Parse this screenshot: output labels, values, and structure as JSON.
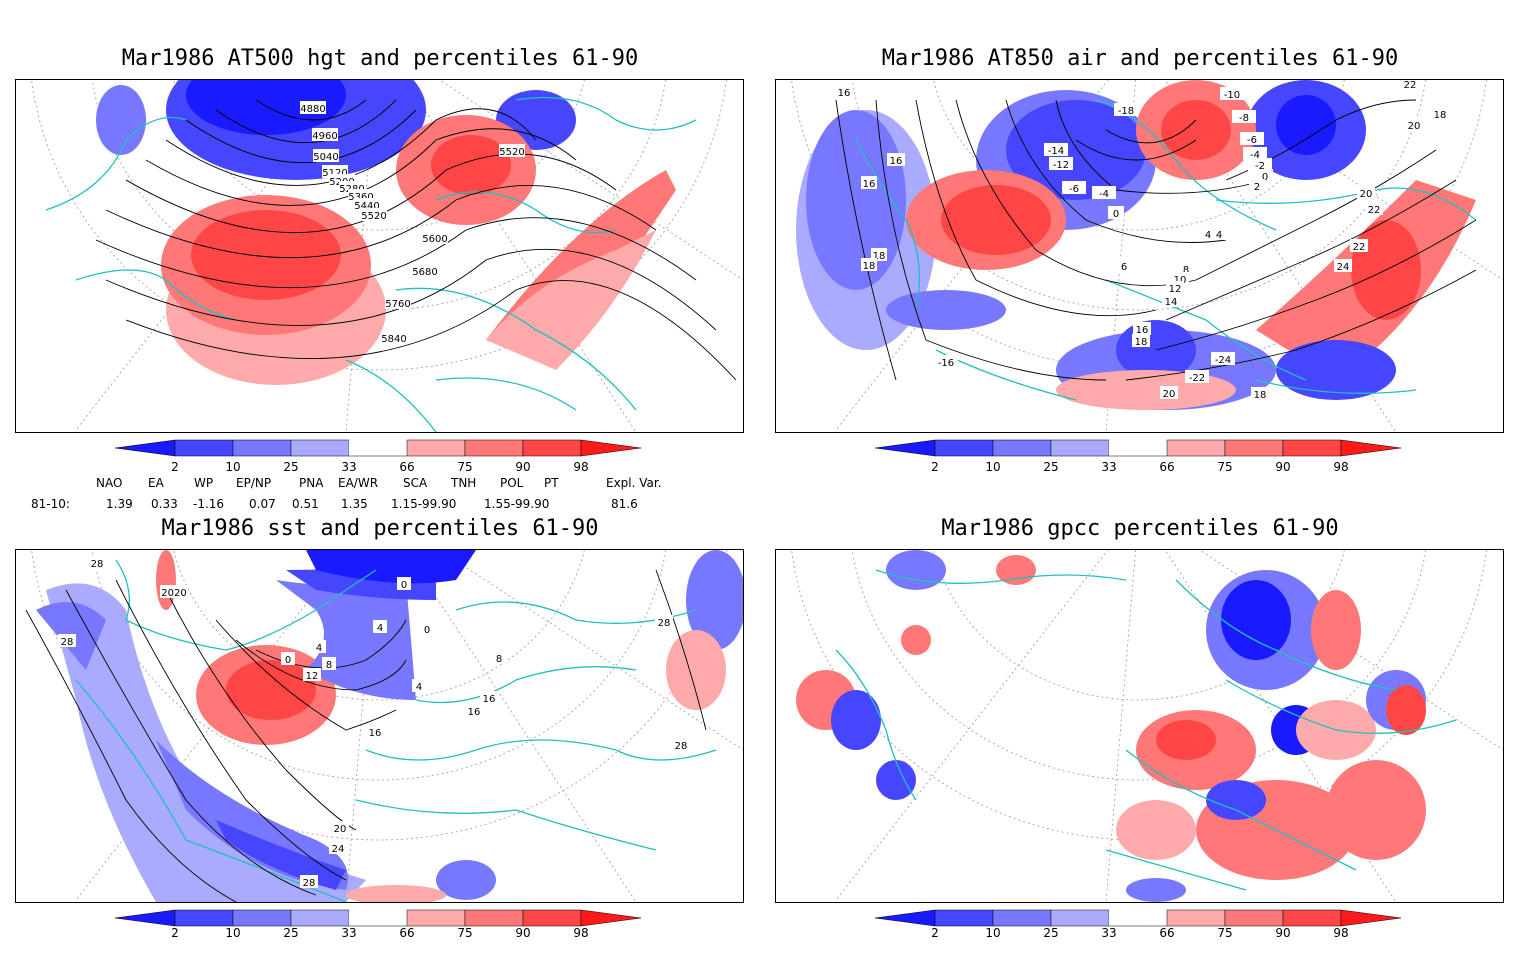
{
  "panels": {
    "hgt": {
      "title": "Mar1986 AT500 hgt and percentiles 61-90",
      "contours": [
        "4880",
        "4960",
        "5040",
        "5120",
        "5200",
        "5280",
        "5360",
        "5440",
        "5520",
        "5600",
        "5680",
        "5760",
        "5840",
        "5520"
      ]
    },
    "air": {
      "title": "Mar1986 AT850 air and percentiles 61-90",
      "contours": [
        "16",
        "16",
        "18",
        "18",
        "-16",
        "-10",
        "-8",
        "-6",
        "-4",
        "-2",
        "0",
        "2",
        "4",
        "-4",
        "0",
        "4",
        "6",
        "8",
        "10",
        "12",
        "14",
        "16",
        "18",
        "20",
        "20",
        "22",
        "22",
        "24",
        "-24",
        "-22",
        "20",
        "18",
        "-18",
        "-14",
        "-12",
        "-6",
        "22",
        "18",
        "16"
      ]
    },
    "sst": {
      "title": "Mar1986 sst and percentiles 61-90",
      "contours": [
        "28",
        "2020",
        "28",
        "0",
        "4",
        "8",
        "12",
        "16",
        "20",
        "24",
        "28",
        "0",
        "4",
        "0",
        "16",
        "16",
        "8",
        "28",
        "28",
        "4"
      ]
    },
    "gpcc": {
      "title": "Mar1986 gpcc percentiles 61-90"
    }
  },
  "colorbar": {
    "ticks": [
      "2",
      "10",
      "25",
      "33",
      "66",
      "75",
      "90",
      "98"
    ],
    "colors": [
      "#1a1aff",
      "#4646ff",
      "#7878ff",
      "#aaaaff",
      "#ffffff",
      "#ffaaaa",
      "#ff7878",
      "#ff4646",
      "#ff1a1a"
    ]
  },
  "indices": {
    "row_label": "81-10:",
    "columns": [
      {
        "name": "NAO",
        "value": "1.39"
      },
      {
        "name": "EA",
        "value": "0.33"
      },
      {
        "name": "WP",
        "value": "-1.16"
      },
      {
        "name": "EP/NP",
        "value": "0.07"
      },
      {
        "name": "PNA",
        "value": "0.51"
      },
      {
        "name": "EA/WR",
        "value": "1.35"
      },
      {
        "name": "SCA",
        "value": "1.15-99.90"
      },
      {
        "name": "TNH",
        "value": ""
      },
      {
        "name": "POL",
        "value": "1.55-99.90"
      },
      {
        "name": "PT",
        "value": ""
      },
      {
        "name": "Expl. Var.",
        "value": "81.6"
      }
    ]
  }
}
